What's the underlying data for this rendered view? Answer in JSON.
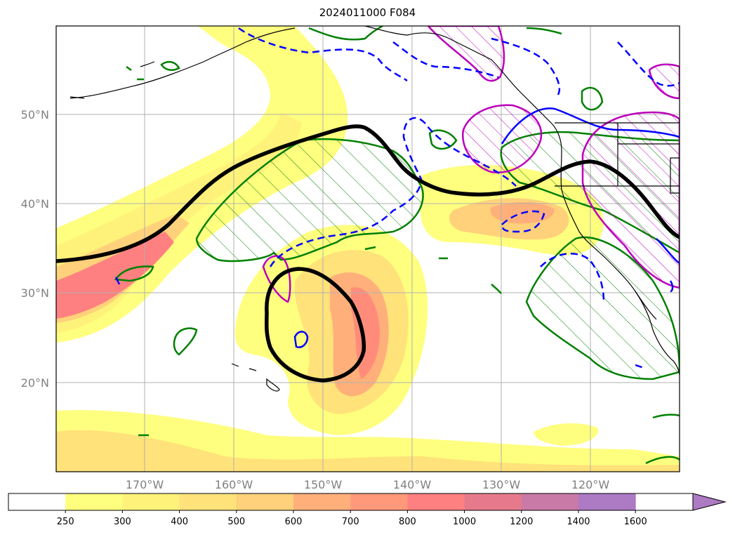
{
  "title": "2024011000 F084",
  "lat_labels": [
    "50°N",
    "40°N",
    "30°N",
    "20°N"
  ],
  "lon_labels": [
    "170°W",
    "160°W",
    "150°W",
    "140°W",
    "130°W",
    "120°W"
  ],
  "colorbar": {
    "ticks": [
      "250",
      "300",
      "400",
      "500",
      "600",
      "700",
      "800",
      "1000",
      "1200",
      "1400",
      "1600"
    ],
    "colors": [
      "#ffffff",
      "#ffff7f",
      "#fff27a",
      "#ffe27a",
      "#ffd17a",
      "#ffb07a",
      "#ff997a",
      "#ff8080",
      "#e67a8c",
      "#c97aa6",
      "#ad7ac4"
    ],
    "extend": "max"
  },
  "colors": {
    "contour_black": "#000000",
    "contour_green": "#008000",
    "contour_blue": "#0000ff",
    "contour_magenta": "#bb00bb",
    "coastline": "#000000",
    "grid": "#b0b0b0"
  }
}
